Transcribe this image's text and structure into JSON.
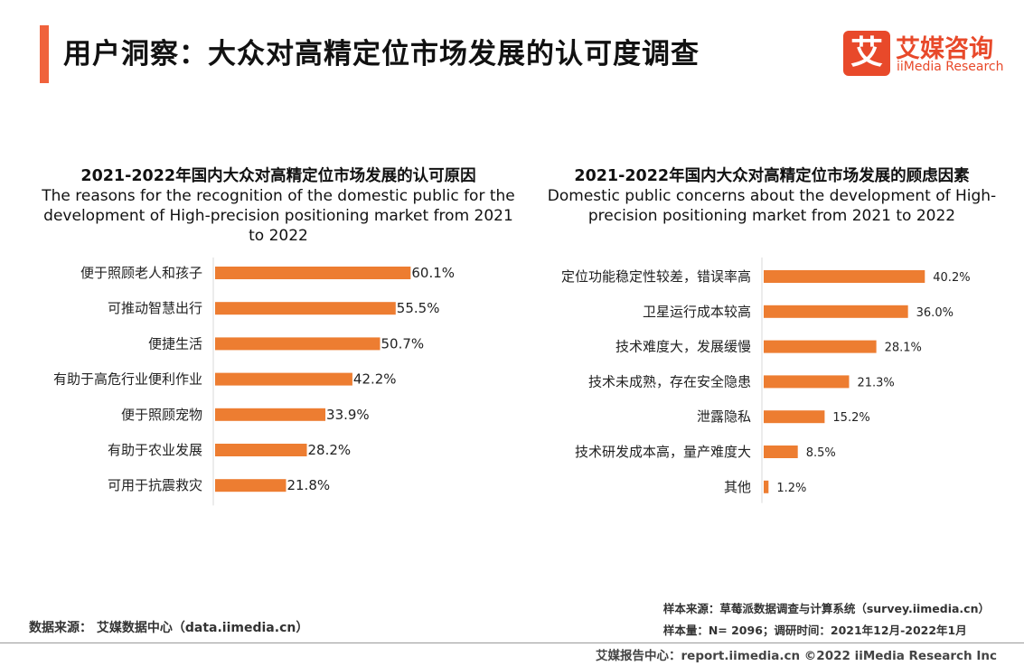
{
  "header": {
    "title": "用户洞察：大众对高精定位市场发展的认可度调查",
    "logo_mark": "艾",
    "logo_cn": "艾媒咨询",
    "logo_en": "iiMedia Research"
  },
  "colors": {
    "accent": "#f0623c",
    "bar": "#ed7d31"
  },
  "chart_data": [
    {
      "type": "bar",
      "orientation": "horizontal",
      "title": "2021-2022年国内大众对高精定位市场发展的认可原因",
      "subtitle": "The reasons for the recognition of the domestic public for the development of High-precision positioning market from 2021 to 2022",
      "categories": [
        "便于照顾老人和孩子",
        "可推动智慧出行",
        "便捷生活",
        "有助于高危行业便利作业",
        "便于照顾宠物",
        "有助于农业发展",
        "可用于抗震救灾"
      ],
      "values": [
        60.1,
        55.5,
        50.7,
        42.2,
        33.9,
        28.2,
        21.8
      ],
      "labels": [
        "60.1%",
        "55.5%",
        "50.7%",
        "42.2%",
        "33.9%",
        "28.2%",
        "21.8%"
      ],
      "xlim": [
        0,
        70
      ]
    },
    {
      "type": "bar",
      "orientation": "horizontal",
      "title": "2021-2022年国内大众对高精定位市场发展的顾虑因素",
      "subtitle": "Domestic public concerns about the development of High-precision positioning market from 2021 to 2022",
      "categories": [
        "定位功能稳定性较差，错误率高",
        "卫星运行成本较高",
        "技术难度大，发展缓慢",
        "技术未成熟，存在安全隐患",
        "泄露隐私",
        "技术研发成本高，量产难度大",
        "其他"
      ],
      "values": [
        40.2,
        36.0,
        28.1,
        21.3,
        15.2,
        8.5,
        1.2
      ],
      "labels": [
        "40.2%",
        "36.0%",
        "28.1%",
        "21.3%",
        "15.2%",
        "8.5%",
        "1.2%"
      ],
      "xlim": [
        0,
        46
      ]
    }
  ],
  "footer": {
    "source_left": "数据来源： 艾媒数据中心（data.iimedia.cn）",
    "sample_source": "样本来源：草莓派数据调查与计算系统（survey.iimedia.cn）",
    "sample_size": "样本量：N= 2096；调研时间：2021年12月-2022年1月",
    "report_center": "艾媒报告中心：report.iimedia.cn    ©2022  iiMedia Research  Inc"
  }
}
